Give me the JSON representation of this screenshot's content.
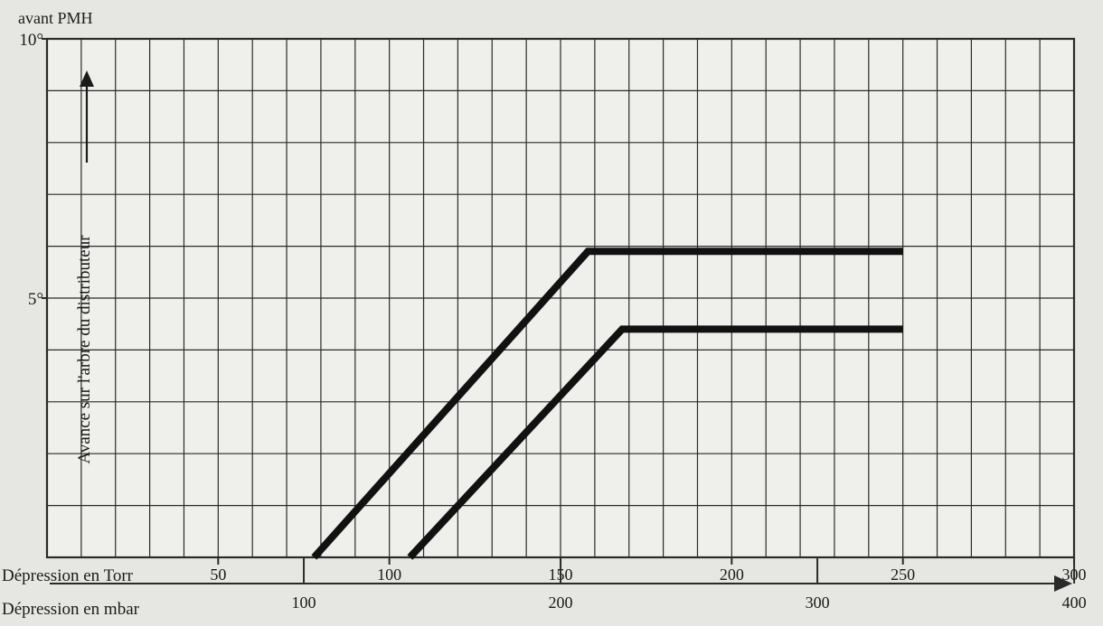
{
  "chart_data": {
    "type": "line",
    "title": "",
    "ylabel": "Avance sur l'arbre du distributeur",
    "y_unit_label": "avant PMH",
    "y_ticks": [
      {
        "value": 5,
        "label": "5°"
      },
      {
        "value": 10,
        "label": "10°"
      }
    ],
    "ylim": [
      0,
      10
    ],
    "x_primary": {
      "label": "Dépression en Torr",
      "ticks": [
        50,
        100,
        150,
        200,
        250,
        300
      ],
      "range": [
        0,
        300
      ]
    },
    "x_secondary": {
      "label": "Dépression en mbar",
      "ticks": [
        100,
        200,
        300,
        400
      ],
      "conversion_torr_to_mbar": 1.33322
    },
    "grid": true,
    "legend": "none",
    "series": [
      {
        "x": [
          78,
          158,
          250
        ],
        "y": [
          0,
          5.9,
          5.9
        ]
      },
      {
        "x": [
          106,
          168,
          250
        ],
        "y": [
          0,
          4.4,
          4.4
        ]
      }
    ]
  },
  "colors": {
    "background": "#e6e6e3",
    "grid": "#2a2a2a",
    "curve": "#111111"
  }
}
